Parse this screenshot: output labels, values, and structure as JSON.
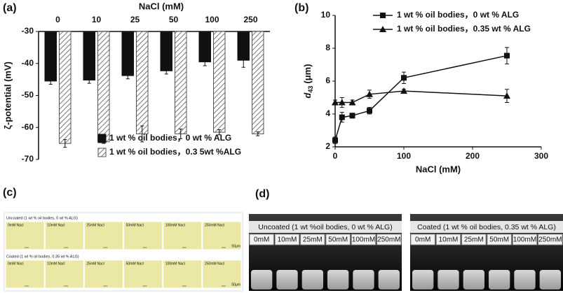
{
  "chart_data": [
    {
      "type": "bar",
      "panel_label": "(a)",
      "title": "NaCl (mM)",
      "ylabel": "ζ-potential (mV)",
      "categories": [
        "0",
        "10",
        "25",
        "50",
        "100",
        "250"
      ],
      "ylim": [
        -70,
        -30
      ],
      "yticks": [
        -30,
        -40,
        -50,
        -60,
        -70
      ],
      "legend": "lower right",
      "series": [
        {
          "name": "1 wt % oil bodies，0 wt % ALG",
          "color": "#111111",
          "values": [
            -45.5,
            -45.2,
            -43.8,
            -42.3,
            -39.5,
            -39
          ],
          "errors": [
            1,
            1,
            1,
            1,
            1.2,
            2.2
          ]
        },
        {
          "name": "1 wt % oil bodies，0.3 5wt %ALG",
          "color": "#555555",
          "hatch": true,
          "values": [
            -65,
            -64.5,
            -62,
            -62,
            -61.5,
            -62
          ],
          "errors": [
            1.2,
            0.5,
            2.5,
            1.5,
            0.8,
            0.6
          ]
        }
      ]
    },
    {
      "type": "line",
      "panel_label": "(b)",
      "xlabel": "NaCl (mM)",
      "ylabel": {
        "symbol": "d",
        "subscript": "43",
        "unit": "(μm)"
      },
      "x": [
        0,
        10,
        25,
        50,
        100,
        250
      ],
      "xlim": [
        0,
        300
      ],
      "xticks": [
        0,
        100,
        200,
        300
      ],
      "ylim": [
        2,
        10
      ],
      "yticks": [
        2,
        4,
        6,
        8,
        10
      ],
      "legend": "upper left",
      "series": [
        {
          "name": "1 wt % oil bodies，0 wt % ALG",
          "color": "#111111",
          "marker": "square",
          "values": [
            2.4,
            3.8,
            3.9,
            4.2,
            6.2,
            7.55
          ],
          "errors": [
            0.2,
            0.3,
            0.15,
            0.2,
            0.35,
            0.5
          ]
        },
        {
          "name": "1 wt % oil bodies，0.35 wt % ALG",
          "color": "#111111",
          "marker": "triangle",
          "values": [
            4.7,
            4.7,
            4.7,
            5.2,
            5.4,
            5.1
          ],
          "errors": [
            0.15,
            0.3,
            0.15,
            0.25,
            0.1,
            0.4
          ]
        }
      ]
    }
  ],
  "panel_c": {
    "label": "(c)",
    "rows": [
      "Uncoated (1 wt % oil bodies, 0 wt % ALG)",
      "Coated (1 wt % oil bodies, 0.35 wt % ALG)"
    ],
    "tiles": [
      "0mM Nacl",
      "10mM Nacl",
      "25mM Nacl",
      "50mM Nacl",
      "100mM Nacl",
      "250mM Nacl"
    ],
    "scale_bar": "50μm"
  },
  "panel_d": {
    "label": "(d)",
    "photos": [
      "Uncoated (1 wt %oil bodies, 0 wt % ALG)",
      "Coated (1 wt % oil bodies, 0.35 wt % ALG)"
    ],
    "tubes": [
      "0mM",
      "10mM",
      "25mM",
      "50mM",
      "100mM",
      "250mM"
    ]
  }
}
